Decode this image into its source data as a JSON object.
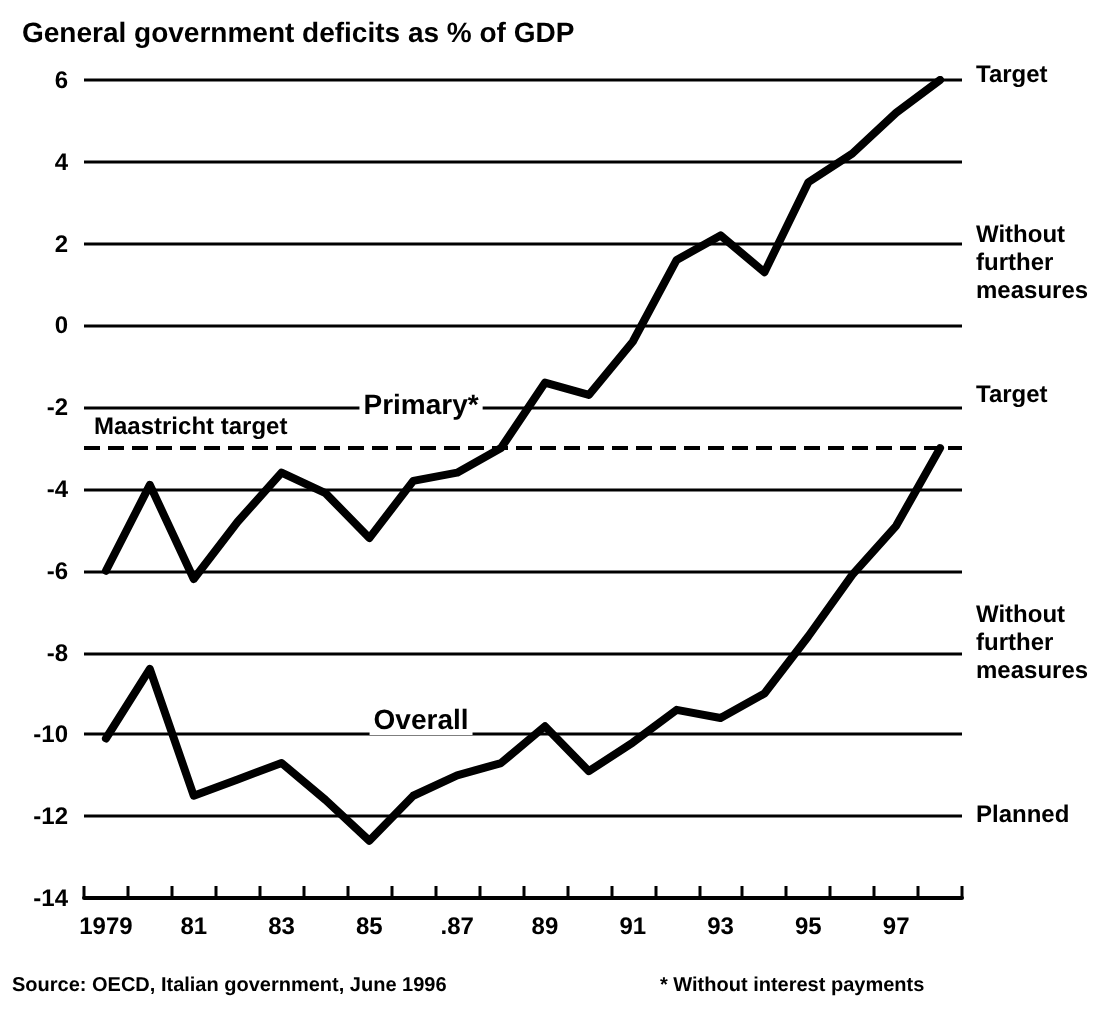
{
  "chart_data": {
    "type": "line",
    "title": "General government deficits as % of GDP",
    "categories": [
      "1979",
      null,
      "81",
      null,
      "83",
      null,
      "85",
      null,
      ".87",
      null,
      "89",
      null,
      "91",
      null,
      "93",
      null,
      "95",
      null,
      "97",
      null
    ],
    "series": [
      {
        "name": "Primary*",
        "color": "#000000",
        "values": [
          -6.0,
          -3.9,
          -6.2,
          -4.8,
          -3.6,
          -4.1,
          -5.2,
          -3.8,
          -3.6,
          -3.0,
          -1.4,
          -1.7,
          -0.4,
          1.6,
          2.2,
          1.3,
          3.5,
          4.2,
          5.2,
          6.0
        ]
      },
      {
        "name": "Overall",
        "color": "#000000",
        "values": [
          -10.1,
          -8.4,
          -11.5,
          -11.1,
          -10.7,
          -11.6,
          -12.6,
          -11.5,
          -11.0,
          -10.7,
          -9.8,
          -10.9,
          -10.2,
          -9.4,
          -9.6,
          -9.0,
          -7.6,
          -6.1,
          -4.9,
          -3.0
        ]
      }
    ],
    "ylim": [
      -14,
      6
    ],
    "yticks": [
      -14,
      -12,
      -10,
      -8,
      -6,
      -4,
      -2,
      0,
      2,
      4,
      6
    ],
    "grid": "y",
    "legend": false,
    "marker": "none",
    "line_style": "solid",
    "ref_lines": [
      {
        "axis": "y",
        "value": -3,
        "label": "Maastricht target",
        "line_style": "dashed",
        "color": "#000000"
      }
    ],
    "annotations": [
      "Target",
      "Without further measures",
      "Target",
      "Without further measures",
      "Planned",
      "Source: OECD, Italian government, June 1996",
      "* Without interest payments"
    ]
  }
}
